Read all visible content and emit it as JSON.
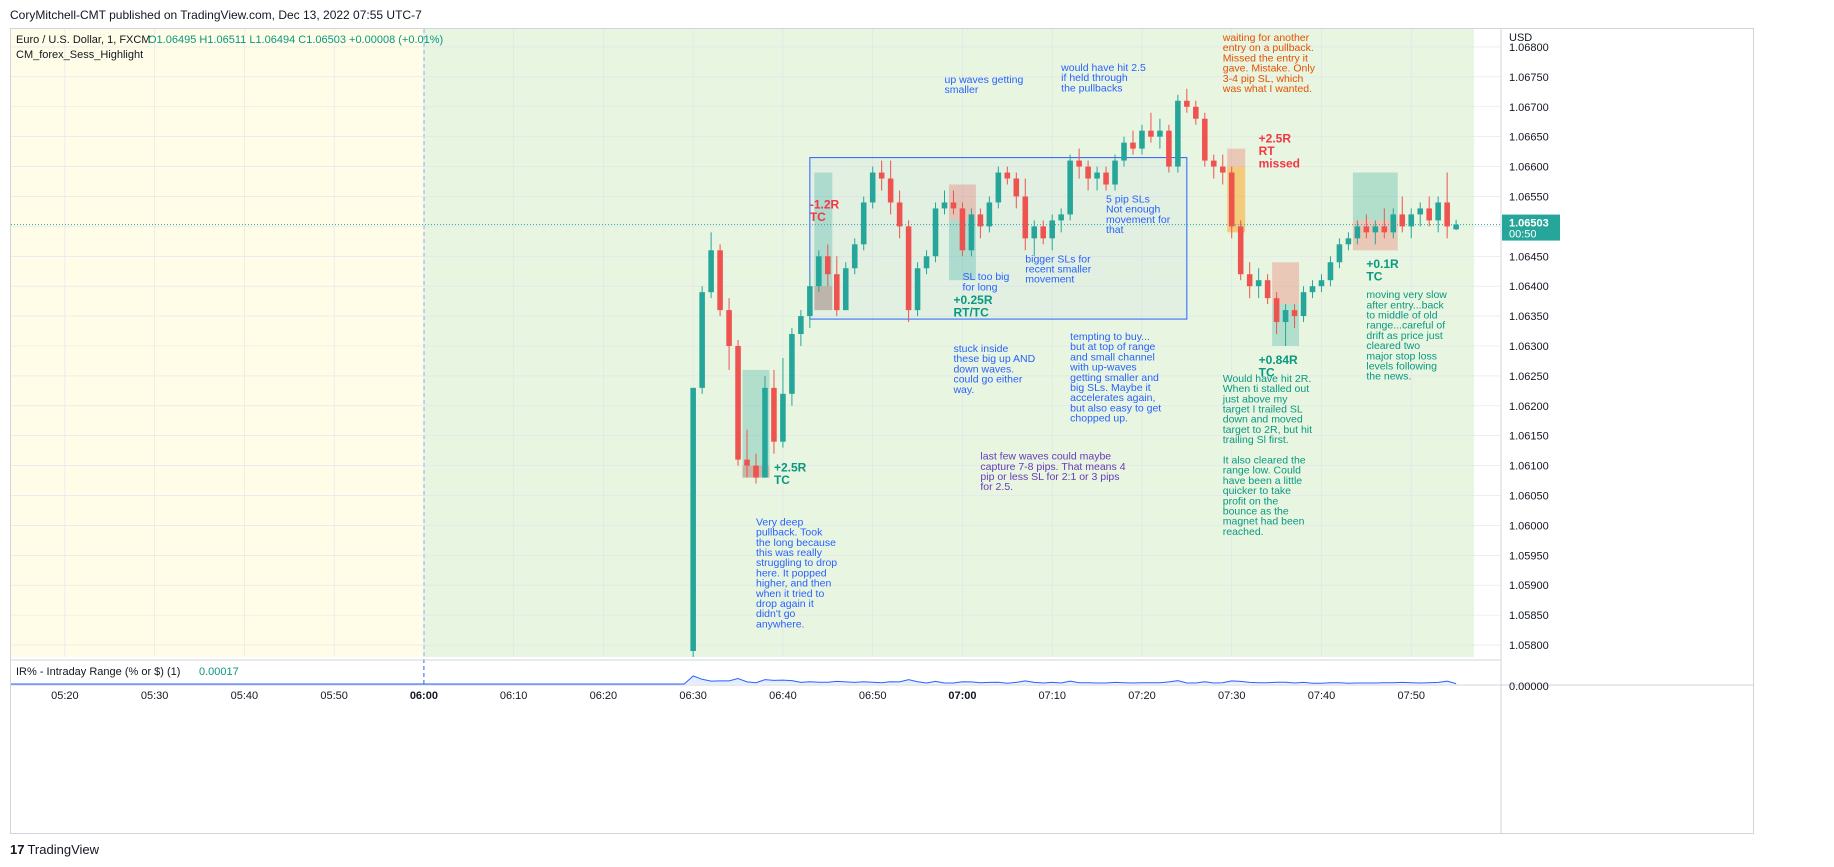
{
  "header": {
    "published_line": "CoryMitchell-CMT published on TradingView.com, Dec 13, 2022 07:55 UTC-7"
  },
  "symbol_info": {
    "name": "Euro / U.S. Dollar, 1, FXCM",
    "ohlc": "O1.06495  H1.06511  L1.06494  C1.06503  +0.00008 (+0.01%)",
    "indicator": "CM_forex_Sess_Highlight"
  },
  "price_axis": {
    "currency": "USD",
    "last_price": "1.06503",
    "countdown": "00:50",
    "ticks": [
      "1.06800",
      "1.06750",
      "1.06700",
      "1.06650",
      "1.06600",
      "1.06550",
      "1.06500",
      "1.06450",
      "1.06400",
      "1.06350",
      "1.06300",
      "1.06250",
      "1.06200",
      "1.06150",
      "1.06100",
      "1.06050",
      "1.06000",
      "1.05950",
      "1.05900",
      "1.05850",
      "1.05800"
    ]
  },
  "time_axis": {
    "ticks": [
      "05:20",
      "05:30",
      "05:40",
      "05:50",
      "06:00",
      "06:10",
      "06:20",
      "06:30",
      "06:40",
      "06:50",
      "07:00",
      "07:10",
      "07:20",
      "07:30",
      "07:40",
      "07:50"
    ],
    "bold_ticks": [
      "06:00",
      "07:00"
    ]
  },
  "indicator_pane": {
    "label": "IR% - Intraday Range (% or $) (1)",
    "value": "0.00017",
    "axis_value": "0.00000"
  },
  "footer": {
    "logo_mark": "17",
    "brand": "TradingView"
  },
  "colors": {
    "bull": "#26a69a",
    "bear": "#ef5350",
    "premarket_bg": "#fffde7",
    "session_bg": "#e8f5e0",
    "annotation_blue": "#2962ff",
    "annotation_green": "#089981",
    "annotation_red": "#f23645",
    "annotation_orange": "#e65100",
    "annotation_purple": "#673ab7"
  },
  "chart_data": {
    "type": "candlestick",
    "symbol": "EURUSD",
    "interval": "1",
    "ylim": [
      1.0578,
      1.0683
    ],
    "x_range": [
      "05:14",
      "08:00"
    ],
    "candles": [
      {
        "t": "06:30",
        "o": 1.0579,
        "h": 1.0623,
        "l": 1.0578,
        "c": 1.0623
      },
      {
        "t": "06:31",
        "o": 1.0623,
        "h": 1.064,
        "l": 1.0622,
        "c": 1.0639
      },
      {
        "t": "06:32",
        "o": 1.0639,
        "h": 1.0649,
        "l": 1.0638,
        "c": 1.0646
      },
      {
        "t": "06:33",
        "o": 1.0646,
        "h": 1.0647,
        "l": 1.0635,
        "c": 1.0636
      },
      {
        "t": "06:34",
        "o": 1.0636,
        "h": 1.0638,
        "l": 1.0626,
        "c": 1.063
      },
      {
        "t": "06:35",
        "o": 1.063,
        "h": 1.0631,
        "l": 1.061,
        "c": 1.0611
      },
      {
        "t": "06:36",
        "o": 1.0611,
        "h": 1.0616,
        "l": 1.0608,
        "c": 1.061
      },
      {
        "t": "06:37",
        "o": 1.061,
        "h": 1.0612,
        "l": 1.0607,
        "c": 1.0608
      },
      {
        "t": "06:38",
        "o": 1.0608,
        "h": 1.0625,
        "l": 1.0608,
        "c": 1.0623
      },
      {
        "t": "06:39",
        "o": 1.0623,
        "h": 1.0626,
        "l": 1.0612,
        "c": 1.0614
      },
      {
        "t": "06:40",
        "o": 1.0614,
        "h": 1.0628,
        "l": 1.0613,
        "c": 1.0622
      },
      {
        "t": "06:41",
        "o": 1.0622,
        "h": 1.0633,
        "l": 1.062,
        "c": 1.0632
      },
      {
        "t": "06:42",
        "o": 1.0632,
        "h": 1.0636,
        "l": 1.063,
        "c": 1.0635
      },
      {
        "t": "06:43",
        "o": 1.0635,
        "h": 1.0642,
        "l": 1.0633,
        "c": 1.064
      },
      {
        "t": "06:44",
        "o": 1.064,
        "h": 1.0646,
        "l": 1.0639,
        "c": 1.0645
      },
      {
        "t": "06:45",
        "o": 1.0645,
        "h": 1.0647,
        "l": 1.064,
        "c": 1.0642
      },
      {
        "t": "06:46",
        "o": 1.0642,
        "h": 1.0645,
        "l": 1.0635,
        "c": 1.0636
      },
      {
        "t": "06:47",
        "o": 1.0636,
        "h": 1.0644,
        "l": 1.0636,
        "c": 1.0643
      },
      {
        "t": "06:48",
        "o": 1.0643,
        "h": 1.0648,
        "l": 1.0642,
        "c": 1.0647
      },
      {
        "t": "06:49",
        "o": 1.0647,
        "h": 1.0655,
        "l": 1.0646,
        "c": 1.0654
      },
      {
        "t": "06:50",
        "o": 1.0654,
        "h": 1.066,
        "l": 1.0653,
        "c": 1.0659
      },
      {
        "t": "06:51",
        "o": 1.0659,
        "h": 1.0661,
        "l": 1.0656,
        "c": 1.0658
      },
      {
        "t": "06:52",
        "o": 1.0658,
        "h": 1.0661,
        "l": 1.0652,
        "c": 1.0654
      },
      {
        "t": "06:53",
        "o": 1.0654,
        "h": 1.0656,
        "l": 1.0648,
        "c": 1.065
      },
      {
        "t": "06:54",
        "o": 1.065,
        "h": 1.0651,
        "l": 1.0634,
        "c": 1.0636
      },
      {
        "t": "06:55",
        "o": 1.0636,
        "h": 1.0644,
        "l": 1.0635,
        "c": 1.0643
      },
      {
        "t": "06:56",
        "o": 1.0643,
        "h": 1.0646,
        "l": 1.0642,
        "c": 1.0645
      },
      {
        "t": "06:57",
        "o": 1.0645,
        "h": 1.0654,
        "l": 1.0644,
        "c": 1.0653
      },
      {
        "t": "06:58",
        "o": 1.0653,
        "h": 1.0656,
        "l": 1.0652,
        "c": 1.0654
      },
      {
        "t": "06:59",
        "o": 1.0654,
        "h": 1.0656,
        "l": 1.0652,
        "c": 1.0653
      },
      {
        "t": "07:00",
        "o": 1.0653,
        "h": 1.0654,
        "l": 1.0645,
        "c": 1.0646
      },
      {
        "t": "07:01",
        "o": 1.0646,
        "h": 1.0653,
        "l": 1.0645,
        "c": 1.0652
      },
      {
        "t": "07:02",
        "o": 1.0652,
        "h": 1.0653,
        "l": 1.0648,
        "c": 1.065
      },
      {
        "t": "07:03",
        "o": 1.065,
        "h": 1.0655,
        "l": 1.0649,
        "c": 1.0654
      },
      {
        "t": "07:04",
        "o": 1.0654,
        "h": 1.066,
        "l": 1.0653,
        "c": 1.0659
      },
      {
        "t": "07:05",
        "o": 1.0659,
        "h": 1.066,
        "l": 1.0657,
        "c": 1.0658
      },
      {
        "t": "07:06",
        "o": 1.0658,
        "h": 1.0659,
        "l": 1.0653,
        "c": 1.0655
      },
      {
        "t": "07:07",
        "o": 1.0655,
        "h": 1.0658,
        "l": 1.0646,
        "c": 1.0648
      },
      {
        "t": "07:08",
        "o": 1.0648,
        "h": 1.0651,
        "l": 1.0645,
        "c": 1.065
      },
      {
        "t": "07:09",
        "o": 1.065,
        "h": 1.0651,
        "l": 1.0647,
        "c": 1.0648
      },
      {
        "t": "07:10",
        "o": 1.0648,
        "h": 1.0652,
        "l": 1.0646,
        "c": 1.0651
      },
      {
        "t": "07:11",
        "o": 1.0651,
        "h": 1.0653,
        "l": 1.0649,
        "c": 1.0652
      },
      {
        "t": "07:12",
        "o": 1.0652,
        "h": 1.0662,
        "l": 1.0651,
        "c": 1.0661
      },
      {
        "t": "07:13",
        "o": 1.0661,
        "h": 1.0663,
        "l": 1.0658,
        "c": 1.066
      },
      {
        "t": "07:14",
        "o": 1.066,
        "h": 1.0661,
        "l": 1.0656,
        "c": 1.0658
      },
      {
        "t": "07:15",
        "o": 1.0658,
        "h": 1.066,
        "l": 1.0656,
        "c": 1.0659
      },
      {
        "t": "07:16",
        "o": 1.0659,
        "h": 1.066,
        "l": 1.0656,
        "c": 1.0657
      },
      {
        "t": "07:17",
        "o": 1.0657,
        "h": 1.0662,
        "l": 1.0656,
        "c": 1.0661
      },
      {
        "t": "07:18",
        "o": 1.0661,
        "h": 1.0665,
        "l": 1.066,
        "c": 1.0664
      },
      {
        "t": "07:19",
        "o": 1.0664,
        "h": 1.0666,
        "l": 1.0662,
        "c": 1.0663
      },
      {
        "t": "07:20",
        "o": 1.0663,
        "h": 1.0667,
        "l": 1.0662,
        "c": 1.0666
      },
      {
        "t": "07:21",
        "o": 1.0666,
        "h": 1.0669,
        "l": 1.0664,
        "c": 1.0665
      },
      {
        "t": "07:22",
        "o": 1.0665,
        "h": 1.0668,
        "l": 1.0663,
        "c": 1.0666
      },
      {
        "t": "07:23",
        "o": 1.0666,
        "h": 1.0667,
        "l": 1.0659,
        "c": 1.066
      },
      {
        "t": "07:24",
        "o": 1.066,
        "h": 1.0672,
        "l": 1.0659,
        "c": 1.0671
      },
      {
        "t": "07:25",
        "o": 1.0671,
        "h": 1.0673,
        "l": 1.0669,
        "c": 1.067
      },
      {
        "t": "07:26",
        "o": 1.067,
        "h": 1.0671,
        "l": 1.0667,
        "c": 1.0668
      },
      {
        "t": "07:27",
        "o": 1.0668,
        "h": 1.0669,
        "l": 1.066,
        "c": 1.0661
      },
      {
        "t": "07:28",
        "o": 1.0661,
        "h": 1.0662,
        "l": 1.0658,
        "c": 1.066
      },
      {
        "t": "07:29",
        "o": 1.066,
        "h": 1.0662,
        "l": 1.0657,
        "c": 1.0659
      },
      {
        "t": "07:30",
        "o": 1.0659,
        "h": 1.066,
        "l": 1.0648,
        "c": 1.065
      },
      {
        "t": "07:31",
        "o": 1.065,
        "h": 1.0651,
        "l": 1.0641,
        "c": 1.0642
      },
      {
        "t": "07:32",
        "o": 1.0642,
        "h": 1.0644,
        "l": 1.0638,
        "c": 1.064
      },
      {
        "t": "07:33",
        "o": 1.064,
        "h": 1.0643,
        "l": 1.0638,
        "c": 1.0641
      },
      {
        "t": "07:34",
        "o": 1.0641,
        "h": 1.0642,
        "l": 1.0637,
        "c": 1.0638
      },
      {
        "t": "07:35",
        "o": 1.0638,
        "h": 1.0639,
        "l": 1.0632,
        "c": 1.0634
      },
      {
        "t": "07:36",
        "o": 1.0634,
        "h": 1.0637,
        "l": 1.063,
        "c": 1.0636
      },
      {
        "t": "07:37",
        "o": 1.0636,
        "h": 1.0637,
        "l": 1.0633,
        "c": 1.0635
      },
      {
        "t": "07:38",
        "o": 1.0635,
        "h": 1.064,
        "l": 1.0634,
        "c": 1.0639
      },
      {
        "t": "07:39",
        "o": 1.0639,
        "h": 1.0641,
        "l": 1.0638,
        "c": 1.064
      },
      {
        "t": "07:40",
        "o": 1.064,
        "h": 1.0642,
        "l": 1.0639,
        "c": 1.0641
      },
      {
        "t": "07:41",
        "o": 1.0641,
        "h": 1.0645,
        "l": 1.064,
        "c": 1.0644
      },
      {
        "t": "07:42",
        "o": 1.0644,
        "h": 1.0648,
        "l": 1.0643,
        "c": 1.0647
      },
      {
        "t": "07:43",
        "o": 1.0647,
        "h": 1.0649,
        "l": 1.0646,
        "c": 1.0648
      },
      {
        "t": "07:44",
        "o": 1.0648,
        "h": 1.0651,
        "l": 1.0647,
        "c": 1.065
      },
      {
        "t": "07:45",
        "o": 1.065,
        "h": 1.0652,
        "l": 1.0648,
        "c": 1.0649
      },
      {
        "t": "07:46",
        "o": 1.0649,
        "h": 1.0651,
        "l": 1.0647,
        "c": 1.065
      },
      {
        "t": "07:47",
        "o": 1.065,
        "h": 1.0653,
        "l": 1.0648,
        "c": 1.0649
      },
      {
        "t": "07:48",
        "o": 1.0649,
        "h": 1.0653,
        "l": 1.0648,
        "c": 1.0652
      },
      {
        "t": "07:49",
        "o": 1.0652,
        "h": 1.0655,
        "l": 1.0649,
        "c": 1.065
      },
      {
        "t": "07:50",
        "o": 1.065,
        "h": 1.0653,
        "l": 1.0648,
        "c": 1.0652
      },
      {
        "t": "07:51",
        "o": 1.0652,
        "h": 1.0654,
        "l": 1.065,
        "c": 1.0653
      },
      {
        "t": "07:52",
        "o": 1.0653,
        "h": 1.0655,
        "l": 1.065,
        "c": 1.0651
      },
      {
        "t": "07:53",
        "o": 1.0651,
        "h": 1.0655,
        "l": 1.0649,
        "c": 1.0654
      },
      {
        "t": "07:54",
        "o": 1.0654,
        "h": 1.0659,
        "l": 1.0648,
        "c": 1.065
      },
      {
        "t": "07:55",
        "o": 1.06495,
        "h": 1.06511,
        "l": 1.06494,
        "c": 1.06503
      }
    ],
    "session_shading": [
      {
        "label": "premarket",
        "from": "05:14",
        "to": "06:00",
        "color": "#fffde7"
      },
      {
        "label": "session",
        "from": "06:00",
        "to": "07:57",
        "color": "#e8f5e0"
      }
    ],
    "range_box": {
      "from": "06:43",
      "to": "07:25",
      "low": 1.06345,
      "high": 1.06615
    },
    "trade_boxes": [
      {
        "type": "profit",
        "from": "06:36",
        "to": "06:38",
        "low": 1.0608,
        "high": 1.0626
      },
      {
        "type": "loss",
        "from": "06:36",
        "to": "06:38",
        "low": 1.0608,
        "high": 1.061
      },
      {
        "type": "profit",
        "from": "06:44",
        "to": "06:45",
        "low": 1.0636,
        "high": 1.0659
      },
      {
        "type": "loss",
        "from": "06:44",
        "to": "06:45",
        "low": 1.0636,
        "high": 1.064
      },
      {
        "type": "loss",
        "from": "06:59",
        "to": "07:01",
        "low": 1.0651,
        "high": 1.0657
      },
      {
        "type": "profit",
        "from": "06:59",
        "to": "07:01",
        "low": 1.0641,
        "high": 1.0651
      },
      {
        "type": "loss",
        "from": "07:30",
        "to": "07:31",
        "low": 1.066,
        "high": 1.0663
      },
      {
        "type": "orange",
        "from": "07:30",
        "to": "07:31",
        "low": 1.0649,
        "high": 1.066
      },
      {
        "type": "loss",
        "from": "07:35",
        "to": "07:37",
        "low": 1.0637,
        "high": 1.0644
      },
      {
        "type": "profit",
        "from": "07:35",
        "to": "07:37",
        "low": 1.063,
        "high": 1.0637
      },
      {
        "type": "profit",
        "from": "07:44",
        "to": "07:48",
        "low": 1.0651,
        "high": 1.0659
      },
      {
        "type": "loss",
        "from": "07:44",
        "to": "07:48",
        "low": 1.0646,
        "high": 1.0651
      }
    ],
    "annotations": [
      {
        "color": "blue",
        "at": "06:37",
        "price": 1.06,
        "lines": [
          "Very deep",
          "pullback. Took",
          "the long because",
          "this was really",
          "struggling to drop",
          "here. It popped",
          "higher, and then",
          "when it tried to",
          "drop again it",
          "didn't go",
          "anywhere."
        ]
      },
      {
        "color": "green",
        "bold": true,
        "at": "06:39",
        "price": 1.0609,
        "lines": [
          "+2.5R",
          "TC"
        ]
      },
      {
        "color": "red",
        "bold": true,
        "at": "06:43",
        "price": 1.0653,
        "lines": [
          "-1.2R",
          "TC"
        ]
      },
      {
        "color": "blue",
        "at": "07:00",
        "price": 1.0641,
        "lines": [
          "SL too big",
          "for long"
        ]
      },
      {
        "color": "green",
        "bold": true,
        "at": "06:59",
        "price": 1.0637,
        "lines": [
          "+0.25R",
          "RT/TC"
        ]
      },
      {
        "color": "blue",
        "at": "06:59",
        "price": 1.0629,
        "lines": [
          "stuck inside",
          "these big up AND",
          "down waves.",
          "could go either",
          "way."
        ]
      },
      {
        "color": "blue",
        "at": "06:58",
        "price": 1.0674,
        "lines": [
          "up waves getting",
          "smaller"
        ]
      },
      {
        "color": "blue",
        "at": "07:11",
        "price": 1.0676,
        "lines": [
          "would have hit 2.5",
          "if held through",
          "the pullbacks"
        ]
      },
      {
        "color": "blue",
        "at": "07:16",
        "price": 1.0654,
        "lines": [
          "5 pip SLs",
          "Not enough",
          "movement for",
          "that"
        ]
      },
      {
        "color": "blue",
        "at": "07:07",
        "price": 1.0644,
        "lines": [
          "bigger SLs for",
          "recent smaller",
          "movement"
        ]
      },
      {
        "color": "blue",
        "at": "07:12",
        "price": 1.0631,
        "lines": [
          "tempting to buy...",
          "but at top of range",
          "and small channel",
          "with up-waves",
          "getting smaller and",
          "big SLs. Maybe it",
          "accelerates again,",
          "but also easy to get",
          "chopped up."
        ]
      },
      {
        "color": "purple",
        "at": "07:02",
        "price": 1.0611,
        "lines": [
          "last few waves could maybe",
          "capture 7-8 pips. That means 4",
          "pip or less SL for 2:1 or 3 pips",
          "for 2.5."
        ]
      },
      {
        "color": "orange",
        "at": "07:29",
        "price": 1.0681,
        "lines": [
          "waiting for another",
          "entry on a pullback.",
          "Missed the entry it",
          "gave. Mistake. Only",
          "3-4 pip SL, which",
          "was what I wanted."
        ]
      },
      {
        "color": "red",
        "bold": true,
        "at": "07:33",
        "price": 1.0664,
        "lines": [
          "+2.5R",
          "RT",
          "missed"
        ]
      },
      {
        "color": "green",
        "bold": true,
        "at": "07:33",
        "price": 1.0627,
        "lines": [
          "+0.84R",
          "TC"
        ]
      },
      {
        "color": "green",
        "at": "07:29",
        "price": 1.0624,
        "lines": [
          "Would have hit 2R.",
          "When ti stalled out",
          "just above my",
          "target I trailed SL",
          "down and moved",
          "target to 2R, but hit",
          "trailing Sl first.",
          "",
          "It also cleared the",
          "range low. Could",
          "have been a little",
          "quicker to take",
          "profit on the",
          "bounce as the",
          "magnet had been",
          "reached."
        ]
      },
      {
        "color": "green",
        "bold": true,
        "at": "07:45",
        "price": 1.0643,
        "lines": [
          "+0.1R",
          "TC"
        ]
      },
      {
        "color": "green",
        "at": "07:45",
        "price": 1.0638,
        "lines": [
          "moving very slow",
          "after entry...back",
          "to middle of old",
          "range...careful of",
          "drift as price just",
          "cleared two",
          "major stop loss",
          "levels following",
          "the news."
        ]
      }
    ]
  }
}
